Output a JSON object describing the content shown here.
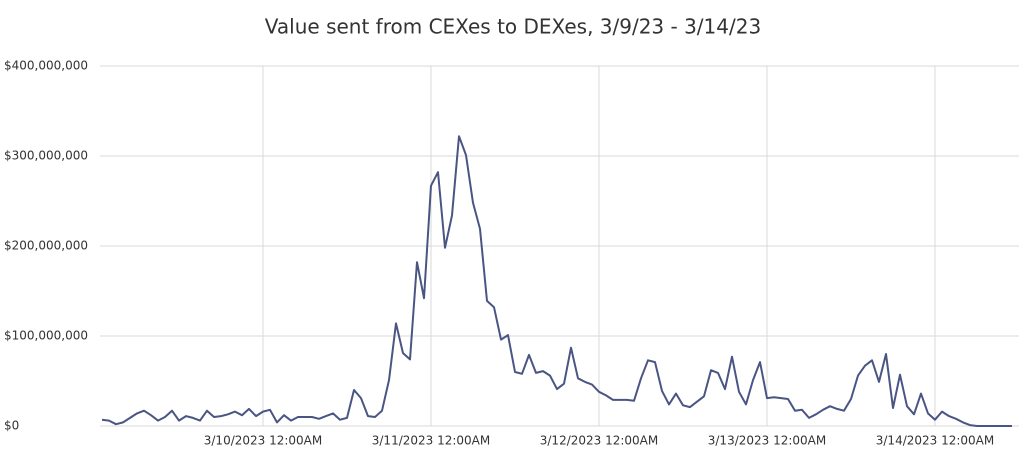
{
  "chart_data": {
    "type": "line",
    "title": "Value sent from CEXes to DEXes, 3/9/23 - 3/14/23",
    "x": [
      1,
      2,
      3,
      4,
      5,
      6,
      7,
      8,
      9,
      10,
      11,
      12,
      13,
      14,
      15,
      16,
      17,
      18,
      19,
      20,
      21,
      22,
      23,
      24,
      25,
      26,
      27,
      28,
      29,
      30,
      31,
      32,
      33,
      34,
      35,
      36,
      37,
      38,
      39,
      40,
      41,
      42,
      43,
      44,
      45,
      46,
      47,
      48,
      49,
      50,
      51,
      52,
      53,
      54,
      55,
      56,
      57,
      58,
      59,
      60,
      61,
      62,
      63,
      64,
      65,
      66,
      67,
      68,
      69,
      70,
      71,
      72,
      73,
      74,
      75,
      76,
      77,
      78,
      79,
      80,
      81,
      82,
      83,
      84,
      85,
      86,
      87,
      88,
      89,
      90,
      91,
      92,
      93,
      94,
      95,
      96,
      97,
      98,
      99,
      100,
      101,
      102,
      103,
      104,
      105,
      106,
      107,
      108,
      109,
      110,
      111,
      112,
      113,
      114,
      115,
      116,
      117,
      118,
      119,
      120,
      121,
      122,
      123,
      124,
      125,
      126,
      127,
      128,
      129,
      130,
      131
    ],
    "series": [
      {
        "name": "Value sent",
        "color": "#4a5584",
        "values": [
          7000000,
          6000000,
          2000000,
          4000000,
          9000000,
          14000000,
          17000000,
          12000000,
          6000000,
          10000000,
          17000000,
          6000000,
          11000000,
          9000000,
          6000000,
          17000000,
          10000000,
          11000000,
          13000000,
          16000000,
          12000000,
          19000000,
          11000000,
          16000000,
          18000000,
          4000000,
          12000000,
          6000000,
          10000000,
          10000000,
          10000000,
          8000000,
          11000000,
          14000000,
          7000000,
          9000000,
          40000000,
          31000000,
          11000000,
          10000000,
          17000000,
          51000000,
          114000000,
          81000000,
          74000000,
          182000000,
          142000000,
          267000000,
          282000000,
          198000000,
          234000000,
          322000000,
          301000000,
          248000000,
          219000000,
          139000000,
          132000000,
          96000000,
          101000000,
          60000000,
          58000000,
          79000000,
          59000000,
          61000000,
          56000000,
          41000000,
          47000000,
          87000000,
          53000000,
          49000000,
          46000000,
          38000000,
          34000000,
          29000000,
          29000000,
          29000000,
          28000000,
          53000000,
          73000000,
          71000000,
          39000000,
          24000000,
          36000000,
          23000000,
          21000000,
          27000000,
          33000000,
          62000000,
          59000000,
          41000000,
          77000000,
          38000000,
          24000000,
          51000000,
          71000000,
          31000000,
          32000000,
          31000000,
          30000000,
          17000000,
          18000000,
          9000000,
          13000000,
          18000000,
          22000000,
          19000000,
          17000000,
          30000000,
          56000000,
          67000000,
          73000000,
          49000000,
          80000000,
          20000000,
          57000000,
          22000000,
          13000000,
          36000000,
          14000000,
          7000000,
          16000000,
          11000000,
          8000000,
          4000000,
          1000000,
          0,
          0,
          0,
          0,
          0,
          0
        ]
      }
    ],
    "xlim": [
      0,
      132
    ],
    "xticks": [
      {
        "value": 24,
        "label": "3/10/2023 12:00AM"
      },
      {
        "value": 48,
        "label": "3/11/2023 12:00AM"
      },
      {
        "value": 72,
        "label": "3/12/2023 12:00AM"
      },
      {
        "value": 96,
        "label": "3/13/2023 12:00AM"
      },
      {
        "value": 120,
        "label": "3/14/2023 12:00AM"
      }
    ],
    "ylim": [
      0,
      400000000
    ],
    "yticks": [
      {
        "value": 0,
        "label": "$0"
      },
      {
        "value": 100000000,
        "label": "$100,000,000"
      },
      {
        "value": 200000000,
        "label": "$200,000,000"
      },
      {
        "value": 300000000,
        "label": "$300,000,000"
      },
      {
        "value": 400000000,
        "label": "$400,000,000"
      }
    ],
    "grid": true
  }
}
